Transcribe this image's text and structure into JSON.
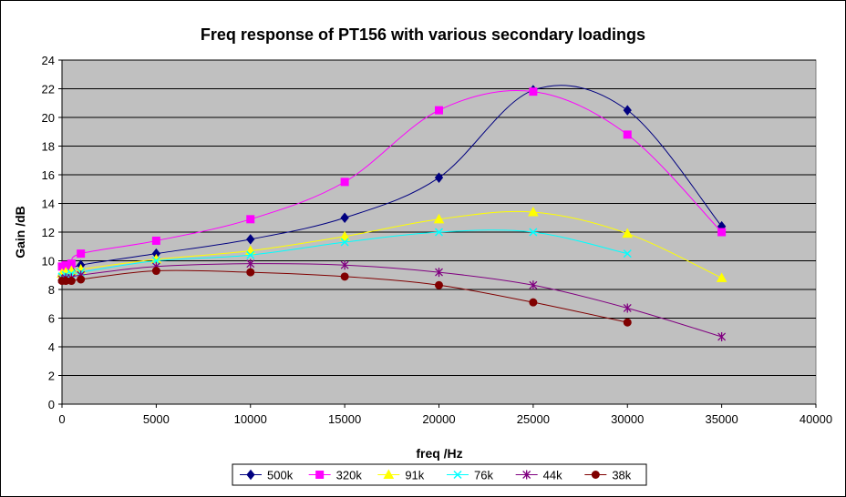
{
  "chart_data": {
    "type": "line",
    "title": "Freq response of PT156 with various secondary loadings",
    "xlabel": "freq /Hz",
    "ylabel": "Gain /dB",
    "xlim": [
      0,
      40000
    ],
    "ylim": [
      0,
      24
    ],
    "x_ticks": [
      0,
      5000,
      10000,
      15000,
      20000,
      25000,
      30000,
      35000,
      40000
    ],
    "y_ticks": [
      0,
      2,
      4,
      6,
      8,
      10,
      12,
      14,
      16,
      18,
      20,
      22,
      24
    ],
    "grid": "horizontal major gridlines",
    "legend_position": "bottom",
    "plot_background": "#c0c0c0",
    "series": [
      {
        "name": "500k",
        "color": "#000080",
        "marker": "diamond",
        "x": [
          0,
          200,
          500,
          1000,
          5000,
          10000,
          15000,
          20000,
          25000,
          30000,
          35000
        ],
        "y": [
          9.0,
          9.1,
          9.3,
          9.7,
          10.5,
          11.5,
          13.0,
          15.8,
          21.9,
          20.5,
          12.4
        ]
      },
      {
        "name": "320k",
        "color": "#ff00ff",
        "marker": "square",
        "x": [
          0,
          200,
          500,
          1000,
          5000,
          10000,
          15000,
          20000,
          25000,
          30000,
          35000
        ],
        "y": [
          9.6,
          9.7,
          9.8,
          10.5,
          11.4,
          12.9,
          15.5,
          20.5,
          21.8,
          18.8,
          12.0
        ]
      },
      {
        "name": "91k",
        "color": "#ffff00",
        "marker": "triangle",
        "x": [
          0,
          200,
          500,
          1000,
          5000,
          10000,
          15000,
          20000,
          25000,
          30000,
          35000
        ],
        "y": [
          9.1,
          9.2,
          9.3,
          9.4,
          10.1,
          10.7,
          11.7,
          12.9,
          13.4,
          11.9,
          8.8
        ]
      },
      {
        "name": "76k",
        "color": "#00ffff",
        "marker": "x",
        "x": [
          0,
          200,
          500,
          1000,
          5000,
          10000,
          15000,
          20000,
          25000,
          30000
        ],
        "y": [
          8.9,
          9.0,
          9.1,
          9.2,
          10.0,
          10.4,
          11.3,
          12.0,
          12.0,
          10.5
        ]
      },
      {
        "name": "44k",
        "color": "#800080",
        "marker": "star",
        "x": [
          0,
          200,
          500,
          1000,
          5000,
          10000,
          15000,
          20000,
          25000,
          30000,
          35000
        ],
        "y": [
          8.7,
          8.8,
          8.8,
          9.0,
          9.6,
          9.8,
          9.7,
          9.2,
          8.3,
          6.7,
          4.7
        ]
      },
      {
        "name": "38k",
        "color": "#800000",
        "marker": "circle",
        "x": [
          0,
          200,
          500,
          1000,
          5000,
          10000,
          15000,
          20000,
          25000,
          30000
        ],
        "y": [
          8.6,
          8.6,
          8.6,
          8.7,
          9.3,
          9.2,
          8.9,
          8.3,
          7.1,
          5.7
        ]
      }
    ]
  }
}
